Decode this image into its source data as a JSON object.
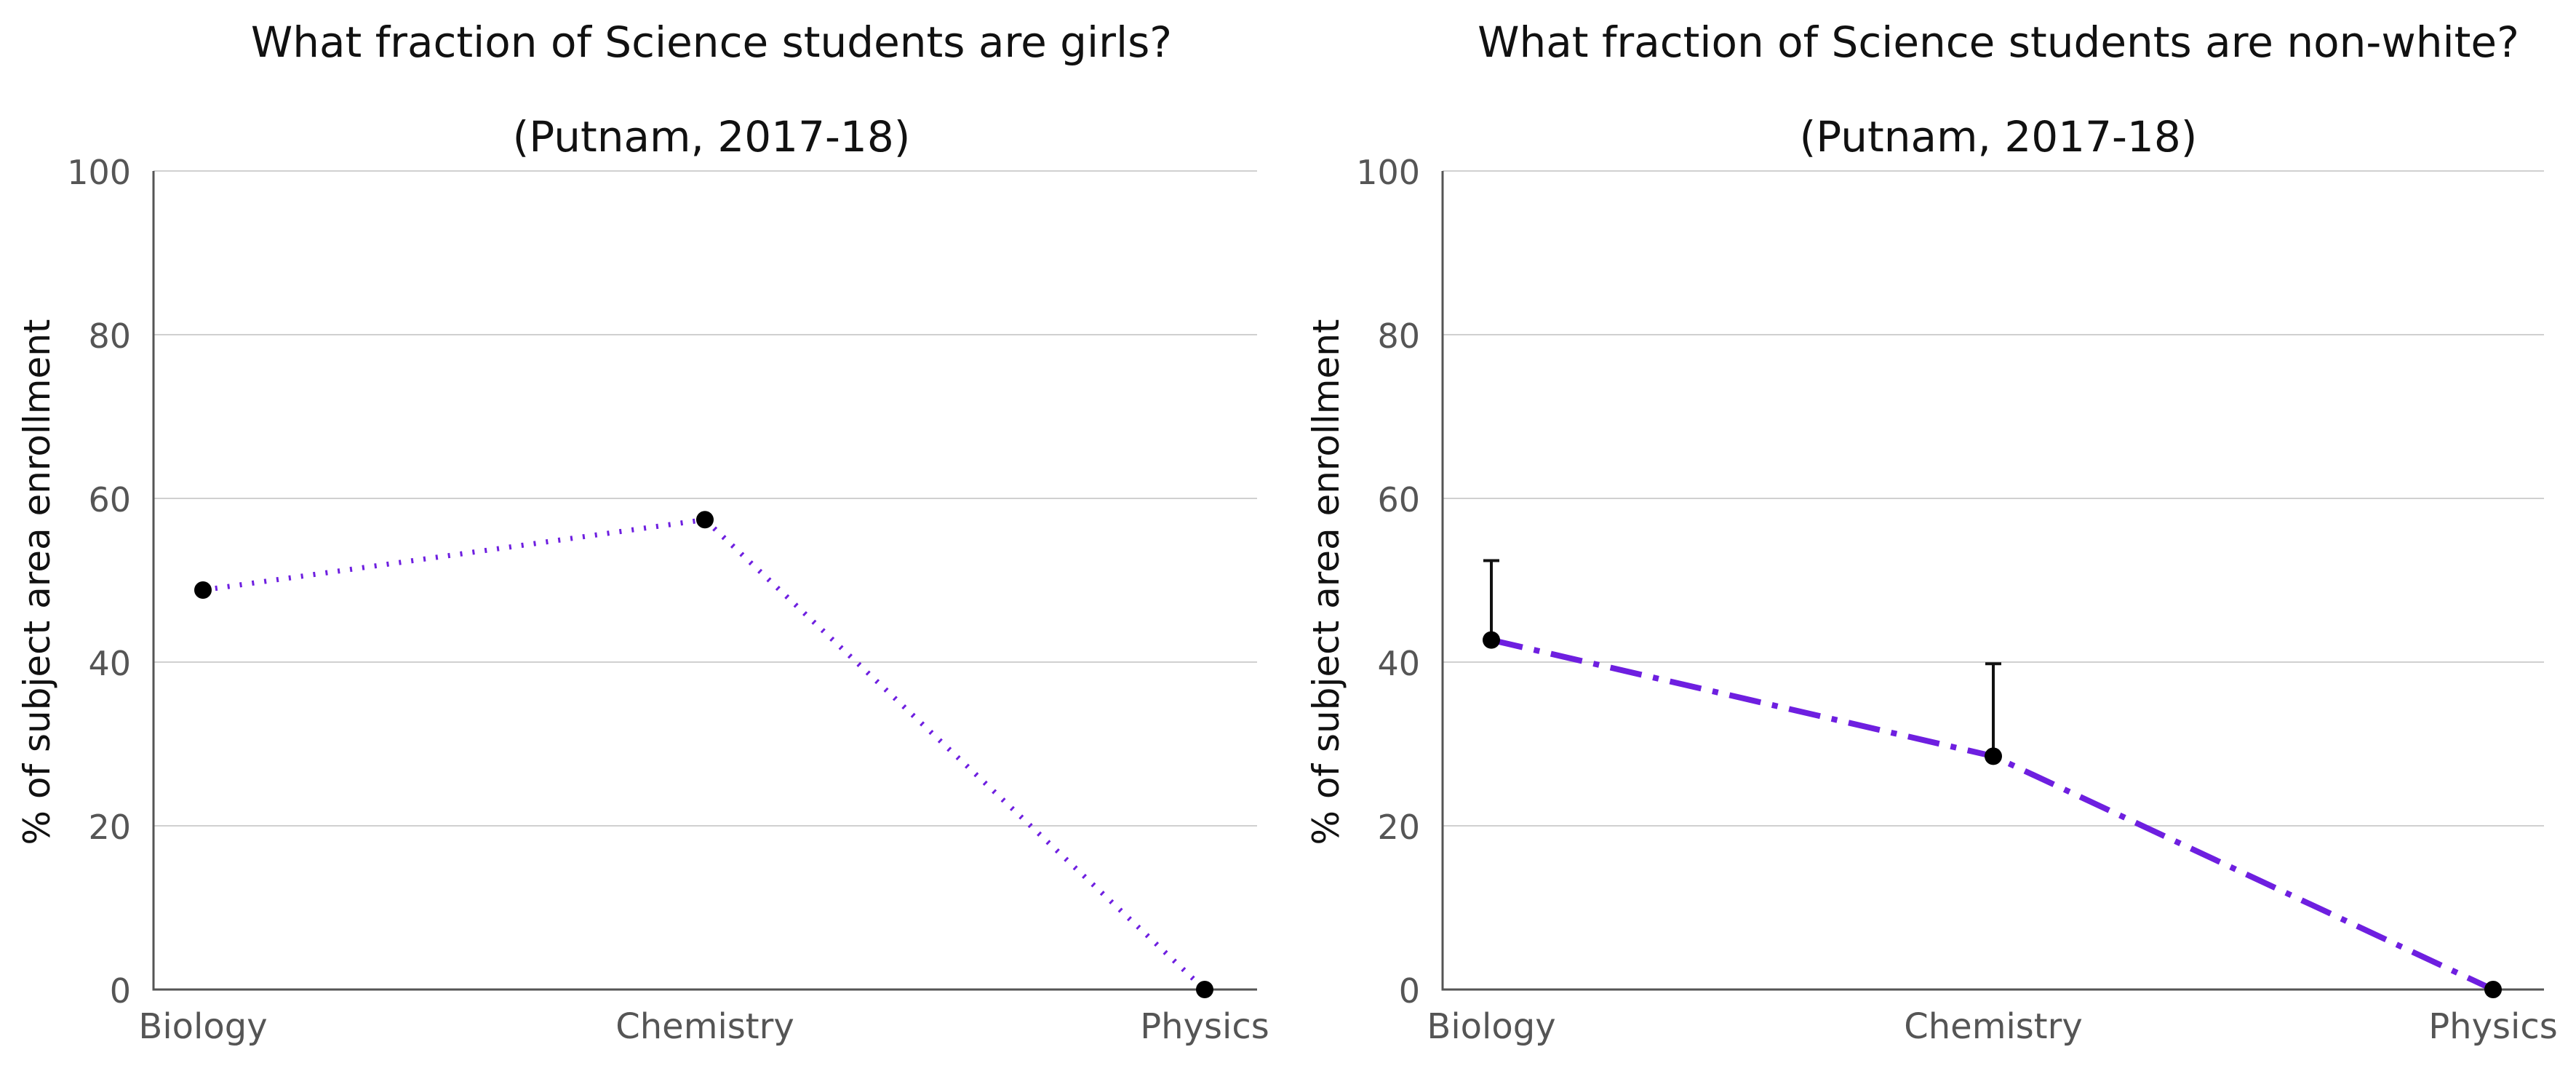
{
  "colors": {
    "line": "#6e1fe0",
    "marker": "#000000"
  },
  "chart_data": [
    {
      "type": "line",
      "title": "What fraction of Science students are girls?",
      "subtitle": "(Putnam, 2017-18)",
      "ylabel": "% of subject area enrollment",
      "xlabel": "",
      "categories": [
        "Biology",
        "Chemistry",
        "Physics"
      ],
      "yticks": [
        "0",
        "20",
        "40",
        "60",
        "80",
        "100"
      ],
      "ylim": [
        0,
        100
      ],
      "grid": true,
      "line_style": "dotted",
      "series": [
        {
          "values": [
            48.8,
            57.4,
            0
          ]
        }
      ],
      "error_bars_upper": [
        null,
        null,
        null
      ]
    },
    {
      "type": "line",
      "title": "What fraction of Science students are non-white?",
      "subtitle": "(Putnam, 2017-18)",
      "ylabel": "% of subject area enrollment",
      "xlabel": "",
      "categories": [
        "Biology",
        "Chemistry",
        "Physics"
      ],
      "yticks": [
        "0",
        "20",
        "40",
        "60",
        "80",
        "100"
      ],
      "ylim": [
        0,
        100
      ],
      "grid": true,
      "line_style": "dash-dot",
      "series": [
        {
          "values": [
            42.7,
            28.5,
            0
          ]
        }
      ],
      "error_bars_upper": [
        52.4,
        39.8,
        null
      ]
    }
  ]
}
